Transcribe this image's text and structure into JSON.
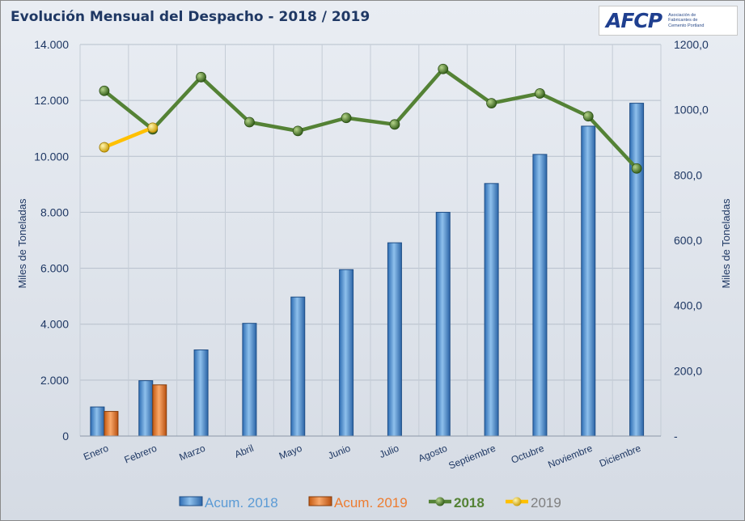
{
  "title": "Evolución Mensual del Despacho - 2018 / 2019",
  "logo": {
    "mark": "AFCP",
    "text": "Asociación de Fabricantes de Cemento Portland"
  },
  "chart_data": {
    "type": "bar",
    "categories": [
      "Enero",
      "Febrero",
      "Marzo",
      "Abril",
      "Mayo",
      "Junio",
      "Julio",
      "Agosto",
      "Septiembre",
      "Octubre",
      "Noviembre",
      "Diciembre"
    ],
    "y_left": {
      "label": "Miles de Toneladas",
      "ylim": [
        0,
        14000
      ],
      "ticks": [
        "0",
        "2.000",
        "4.000",
        "6.000",
        "8.000",
        "10.000",
        "12.000",
        "14.000"
      ]
    },
    "y_right": {
      "label": "Miles de Toneladas",
      "ylim": [
        0,
        1200
      ],
      "ticks": [
        "-",
        "200,0",
        "400,0",
        "600,0",
        "800,0",
        "1000,0",
        "1200,0"
      ]
    },
    "series": [
      {
        "name": "Acum. 2018",
        "kind": "bar",
        "axis": "left",
        "color": "#5b9bd5",
        "values": [
          1040,
          1980,
          3080,
          4030,
          4970,
          5950,
          6910,
          8000,
          9030,
          10070,
          11080,
          11900
        ]
      },
      {
        "name": "Acum. 2019",
        "kind": "bar",
        "axis": "left",
        "color": "#ed7d31",
        "values": [
          880,
          1830,
          null,
          null,
          null,
          null,
          null,
          null,
          null,
          null,
          null,
          null
        ]
      },
      {
        "name": "2018",
        "kind": "line",
        "axis": "right",
        "color": "#548235",
        "values": [
          1058,
          940,
          1100,
          962,
          935,
          975,
          955,
          1125,
          1020,
          1050,
          980,
          820
        ]
      },
      {
        "name": "2019",
        "kind": "line",
        "axis": "right",
        "color": "#ffc000",
        "values": [
          885,
          945,
          null,
          null,
          null,
          null,
          null,
          null,
          null,
          null,
          null,
          null
        ]
      }
    ],
    "grid": true,
    "legend": "bottom"
  }
}
